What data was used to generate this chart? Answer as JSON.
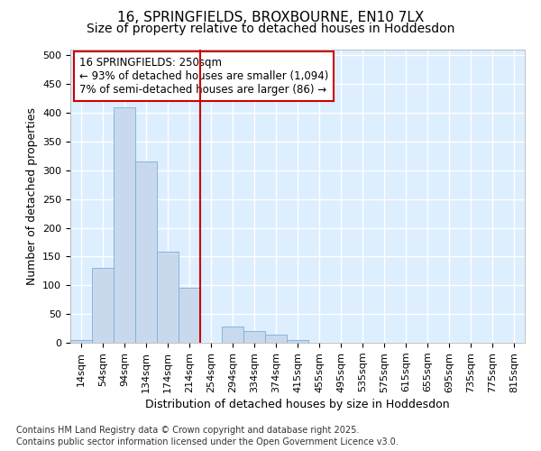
{
  "title_line1": "16, SPRINGFIELDS, BROXBOURNE, EN10 7LX",
  "title_line2": "Size of property relative to detached houses in Hoddesdon",
  "xlabel": "Distribution of detached houses by size in Hoddesdon",
  "ylabel": "Number of detached properties",
  "bar_labels": [
    "14sqm",
    "54sqm",
    "94sqm",
    "134sqm",
    "174sqm",
    "214sqm",
    "254sqm",
    "294sqm",
    "334sqm",
    "374sqm",
    "415sqm",
    "455sqm",
    "495sqm",
    "535sqm",
    "575sqm",
    "615sqm",
    "655sqm",
    "695sqm",
    "735sqm",
    "775sqm",
    "815sqm"
  ],
  "bar_values": [
    5,
    130,
    410,
    315,
    158,
    95,
    0,
    28,
    20,
    14,
    5,
    0,
    0,
    0,
    0,
    0,
    0,
    0,
    0,
    0,
    0
  ],
  "bar_color": "#c8d9ee",
  "bar_edge_color": "#7bafd4",
  "vline_x_index": 6,
  "vline_color": "#cc0000",
  "annotation_text": "16 SPRINGFIELDS: 250sqm\n← 93% of detached houses are smaller (1,094)\n7% of semi-detached houses are larger (86) →",
  "annotation_box_facecolor": "#ffffff",
  "annotation_box_edgecolor": "#cc0000",
  "ylim": [
    0,
    510
  ],
  "yticks": [
    0,
    50,
    100,
    150,
    200,
    250,
    300,
    350,
    400,
    450,
    500
  ],
  "fig_background": "#ffffff",
  "plot_background": "#ddeeff",
  "grid_color": "#ffffff",
  "footer_line1": "Contains HM Land Registry data © Crown copyright and database right 2025.",
  "footer_line2": "Contains public sector information licensed under the Open Government Licence v3.0.",
  "title_fontsize": 11,
  "subtitle_fontsize": 10,
  "axis_label_fontsize": 9,
  "tick_fontsize": 8,
  "footer_fontsize": 7,
  "annotation_fontsize": 8.5
}
